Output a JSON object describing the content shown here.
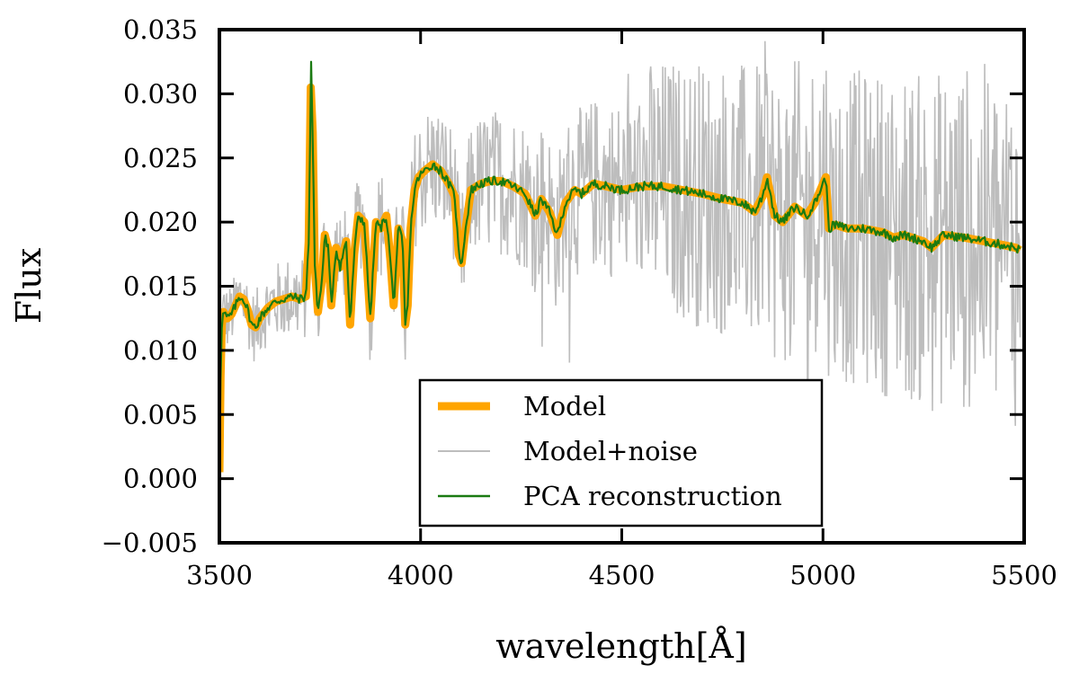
{
  "chart_data": {
    "type": "line",
    "title": "",
    "xlabel": "wavelength[Å]",
    "ylabel": "Flux",
    "xlim": [
      3500,
      5500
    ],
    "ylim": [
      -0.005,
      0.035
    ],
    "xticks": [
      3500,
      4000,
      4500,
      5000,
      5500
    ],
    "xtick_labels": [
      "3500",
      "4000",
      "4500",
      "5000",
      "5500"
    ],
    "yticks": [
      -0.005,
      0.0,
      0.005,
      0.01,
      0.015,
      0.02,
      0.025,
      0.03,
      0.035
    ],
    "ytick_labels": [
      "−0.005",
      "0.000",
      "0.005",
      "0.010",
      "0.015",
      "0.020",
      "0.025",
      "0.030",
      "0.035"
    ],
    "grid": false,
    "legend_position": "lower-center",
    "series": [
      {
        "name": "Model",
        "color": "#FFA500",
        "style": "thick",
        "x": [
          3500,
          3503,
          3506,
          3510,
          3520,
          3530,
          3540,
          3550,
          3560,
          3570,
          3580,
          3590,
          3600,
          3620,
          3640,
          3660,
          3680,
          3700,
          3715,
          3722,
          3727,
          3732,
          3737,
          3745,
          3755,
          3762,
          3770,
          3778,
          3790,
          3800,
          3815,
          3825,
          3835,
          3845,
          3860,
          3875,
          3889,
          3900,
          3915,
          3925,
          3933,
          3945,
          3955,
          3962,
          3968,
          3975,
          3985,
          3995,
          4010,
          4030,
          4050,
          4070,
          4085,
          4095,
          4102,
          4110,
          4125,
          4150,
          4175,
          4200,
          4230,
          4260,
          4285,
          4300,
          4320,
          4340,
          4360,
          4383,
          4400,
          4430,
          4460,
          4500,
          4550,
          4600,
          4650,
          4700,
          4750,
          4800,
          4830,
          4850,
          4861,
          4880,
          4900,
          4930,
          4959,
          4980,
          5007,
          5015,
          5030,
          5060,
          5100,
          5150,
          5175,
          5200,
          5250,
          5270,
          5300,
          5350,
          5400,
          5450,
          5480,
          5490
        ],
        "values": [
          0.0005,
          0.008,
          0.012,
          0.013,
          0.0125,
          0.0128,
          0.0135,
          0.0142,
          0.014,
          0.0132,
          0.012,
          0.0118,
          0.0125,
          0.0133,
          0.0138,
          0.014,
          0.0142,
          0.014,
          0.0142,
          0.0185,
          0.0305,
          0.027,
          0.0165,
          0.013,
          0.0155,
          0.019,
          0.018,
          0.0135,
          0.018,
          0.0165,
          0.0185,
          0.012,
          0.0175,
          0.0205,
          0.02,
          0.0125,
          0.02,
          0.0195,
          0.0205,
          0.017,
          0.0135,
          0.0195,
          0.0185,
          0.012,
          0.0135,
          0.0195,
          0.0225,
          0.0235,
          0.024,
          0.0245,
          0.024,
          0.023,
          0.022,
          0.0175,
          0.0168,
          0.019,
          0.0225,
          0.023,
          0.0232,
          0.0232,
          0.0228,
          0.0222,
          0.0205,
          0.0218,
          0.0208,
          0.019,
          0.0215,
          0.0225,
          0.0222,
          0.023,
          0.0228,
          0.0225,
          0.0228,
          0.0228,
          0.0225,
          0.0222,
          0.0218,
          0.0215,
          0.0208,
          0.022,
          0.0235,
          0.0205,
          0.02,
          0.0212,
          0.0205,
          0.0215,
          0.0235,
          0.0195,
          0.0198,
          0.0195,
          0.0195,
          0.0192,
          0.0188,
          0.019,
          0.0185,
          0.018,
          0.019,
          0.0188,
          0.0185,
          0.0182,
          0.018,
          0.0178
        ]
      },
      {
        "name": "Model+noise",
        "color": "#BDBDBD",
        "style": "noisy"
      },
      {
        "name": "PCA reconstruction",
        "color": "#1A7A12",
        "style": "thin"
      }
    ]
  }
}
